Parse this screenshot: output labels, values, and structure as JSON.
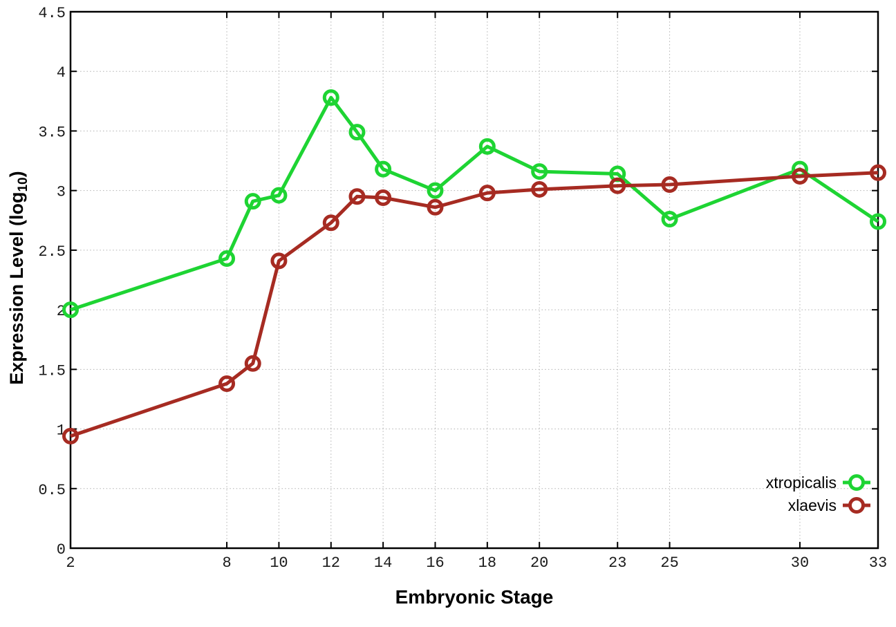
{
  "chart_data": {
    "type": "line",
    "title": "",
    "xlabel": "Embryonic Stage",
    "ylabel": {
      "main": "Expression Level (log",
      "sub": "10",
      "close": ")"
    },
    "xlim": [
      2,
      33
    ],
    "ylim": [
      0,
      4.5
    ],
    "grid": true,
    "legend_position": "inside-bottom-right",
    "x_tick_values": [
      2,
      8,
      10,
      12,
      14,
      16,
      18,
      20,
      23,
      25,
      30,
      33
    ],
    "x_tick_labels": [
      "2",
      "8",
      "10",
      "12",
      "14",
      "16",
      "18",
      "20",
      "23",
      "25",
      "30",
      "33"
    ],
    "y_tick_values": [
      0,
      0.5,
      1,
      1.5,
      2,
      2.5,
      3,
      3.5,
      4,
      4.5
    ],
    "y_tick_labels": [
      "0",
      "0.5",
      "1",
      "1.5",
      "2",
      "2.5",
      "3",
      "3.5",
      "4",
      "4.5"
    ],
    "x": [
      2,
      8,
      9,
      10,
      12,
      13,
      14,
      16,
      18,
      20,
      23,
      25,
      30,
      33
    ],
    "series": [
      {
        "name": "xtropicalis",
        "color": "#1ed433",
        "values": [
          2.0,
          2.43,
          2.91,
          2.96,
          3.78,
          3.49,
          3.18,
          3.0,
          3.37,
          3.16,
          3.14,
          2.76,
          3.18,
          2.74
        ]
      },
      {
        "name": "xlaevis",
        "color": "#a62b22",
        "values": [
          0.94,
          1.38,
          1.55,
          2.41,
          2.73,
          2.95,
          2.94,
          2.86,
          2.98,
          3.01,
          3.04,
          3.05,
          3.12,
          3.15
        ]
      }
    ],
    "style": {
      "grid_color": "#b0b0b0",
      "border_color": "#000000",
      "line_width": 5,
      "marker_radius": 9.5
    }
  }
}
